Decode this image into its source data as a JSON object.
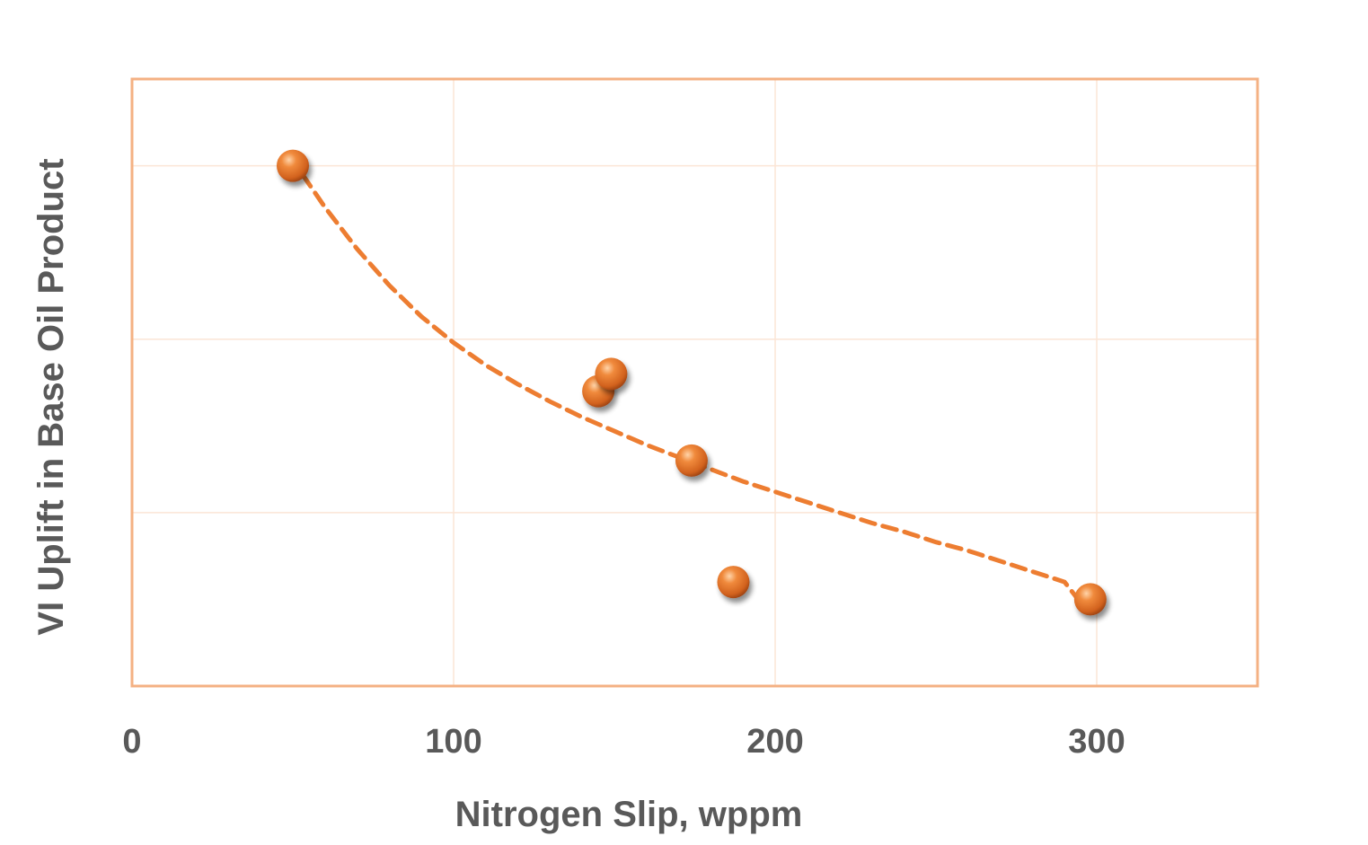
{
  "chart_data": {
    "type": "scatter",
    "title": "",
    "xlabel": "Nitrogen Slip, wppm",
    "ylabel": "VI Uplift in Base Oil Product",
    "xlim": [
      0,
      350
    ],
    "ylim": [
      0,
      3.5
    ],
    "xticks": [
      0,
      100,
      200,
      300
    ],
    "xtick_labels": [
      "0",
      "100",
      "200",
      "300"
    ],
    "yticks": [
      1,
      2,
      3
    ],
    "ytick_labels_shown": false,
    "grid": true,
    "legend": "none",
    "series": [
      {
        "type": "scatter",
        "x": [
          50,
          145,
          149,
          174,
          187,
          298
        ],
        "y": [
          3.0,
          1.7,
          1.8,
          1.3,
          0.6,
          0.5
        ],
        "color": "#E5702A"
      }
    ],
    "trendline": {
      "style": "dashed",
      "form": "power",
      "color": "#ED7D31",
      "x": [
        53,
        60,
        70,
        80,
        90,
        100,
        110,
        120,
        130,
        140,
        150,
        160,
        170,
        180,
        190,
        200,
        210,
        220,
        230,
        240,
        250,
        260,
        270,
        280,
        290,
        295
      ],
      "y": [
        2.95,
        2.76,
        2.52,
        2.31,
        2.13,
        1.98,
        1.85,
        1.74,
        1.64,
        1.55,
        1.47,
        1.39,
        1.32,
        1.25,
        1.18,
        1.12,
        1.06,
        1.0,
        0.94,
        0.89,
        0.83,
        0.78,
        0.72,
        0.66,
        0.6,
        0.48
      ]
    },
    "colors": {
      "plot_border": "#F4B183",
      "grid": "#FBE5D6",
      "text": "#595959"
    }
  }
}
